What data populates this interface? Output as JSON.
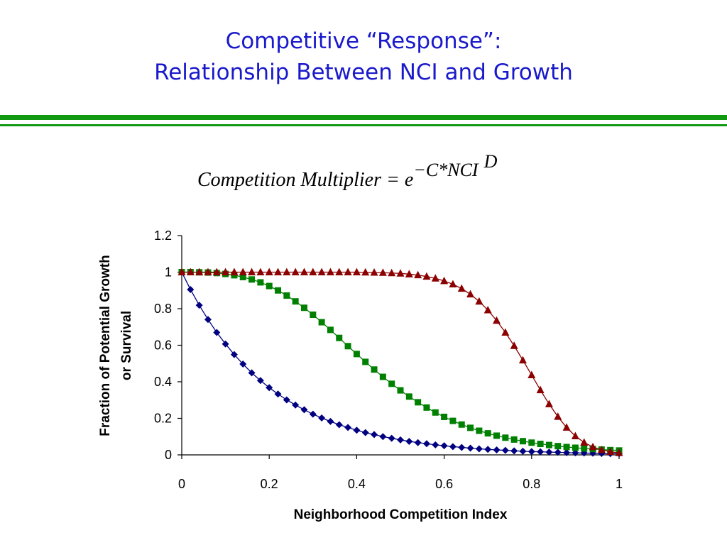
{
  "slide": {
    "title_line1": "Competitive “Response”:",
    "title_line2": "Relationship Between NCI and Growth",
    "formula": {
      "lhs": "Competition Multiplier",
      "equals": "=",
      "base": "e",
      "exponent": "−C*NCI",
      "power": "D"
    }
  },
  "chart_data": {
    "type": "line",
    "xlabel": "Neighborhood Competition Index",
    "ylabel_line1": "Fraction of Potential Growth",
    "ylabel_line2": "or Survival",
    "xlim": [
      0,
      1
    ],
    "ylim": [
      0,
      1.2
    ],
    "x_ticks": [
      "0",
      "0.2",
      "0.4",
      "0.6",
      "0.8",
      "1"
    ],
    "y_ticks": [
      "0",
      "0.2",
      "0.4",
      "0.6",
      "0.8",
      "1",
      "1.2"
    ],
    "grid": false,
    "legend": "none",
    "x": [
      0,
      0.02,
      0.04,
      0.06,
      0.08,
      0.1,
      0.12,
      0.14,
      0.16,
      0.18,
      0.2,
      0.22,
      0.24,
      0.26,
      0.28,
      0.3,
      0.32,
      0.34,
      0.36,
      0.38,
      0.4,
      0.42,
      0.44,
      0.46,
      0.48,
      0.5,
      0.52,
      0.54,
      0.56,
      0.58,
      0.6,
      0.62,
      0.64,
      0.66,
      0.68,
      0.7,
      0.72,
      0.74,
      0.76,
      0.78,
      0.8,
      0.82,
      0.84,
      0.86,
      0.88,
      0.9,
      0.92,
      0.94,
      0.96,
      0.98,
      1.0
    ],
    "series": [
      {
        "marker": "diamond",
        "color": "#000080",
        "values": [
          1.0,
          0.905,
          0.819,
          0.741,
          0.67,
          0.607,
          0.549,
          0.497,
          0.449,
          0.407,
          0.368,
          0.333,
          0.301,
          0.273,
          0.247,
          0.223,
          0.202,
          0.183,
          0.165,
          0.15,
          0.135,
          0.122,
          0.111,
          0.1,
          0.091,
          0.082,
          0.074,
          0.067,
          0.061,
          0.055,
          0.05,
          0.045,
          0.041,
          0.037,
          0.033,
          0.03,
          0.027,
          0.025,
          0.022,
          0.02,
          0.018,
          0.017,
          0.015,
          0.014,
          0.012,
          0.011,
          0.01,
          0.009,
          0.008,
          0.007,
          0.007
        ]
      },
      {
        "marker": "square",
        "color": "#008000",
        "values": [
          1.0,
          1.0,
          0.999,
          0.998,
          0.995,
          0.99,
          0.983,
          0.973,
          0.96,
          0.944,
          0.924,
          0.9,
          0.872,
          0.84,
          0.805,
          0.767,
          0.726,
          0.684,
          0.64,
          0.595,
          0.552,
          0.509,
          0.467,
          0.427,
          0.389,
          0.353,
          0.319,
          0.288,
          0.259,
          0.232,
          0.208,
          0.186,
          0.166,
          0.148,
          0.132,
          0.118,
          0.105,
          0.094,
          0.084,
          0.075,
          0.067,
          0.06,
          0.054,
          0.048,
          0.043,
          0.039,
          0.035,
          0.032,
          0.029,
          0.026,
          0.024
        ]
      },
      {
        "marker": "triangle",
        "color": "#8b0000",
        "values": [
          1.0,
          1.0,
          1.0,
          1.0,
          1.0,
          1.0,
          1.0,
          1.0,
          1.0,
          1.0,
          1.0,
          1.0,
          1.0,
          1.0,
          1.0,
          1.0,
          1.0,
          1.0,
          1.0,
          1.0,
          1.0,
          0.999,
          0.998,
          0.997,
          0.995,
          0.993,
          0.989,
          0.984,
          0.976,
          0.966,
          0.952,
          0.934,
          0.91,
          0.879,
          0.84,
          0.792,
          0.735,
          0.67,
          0.597,
          0.518,
          0.437,
          0.355,
          0.278,
          0.209,
          0.15,
          0.103,
          0.068,
          0.043,
          0.027,
          0.017,
          0.011
        ]
      }
    ]
  }
}
